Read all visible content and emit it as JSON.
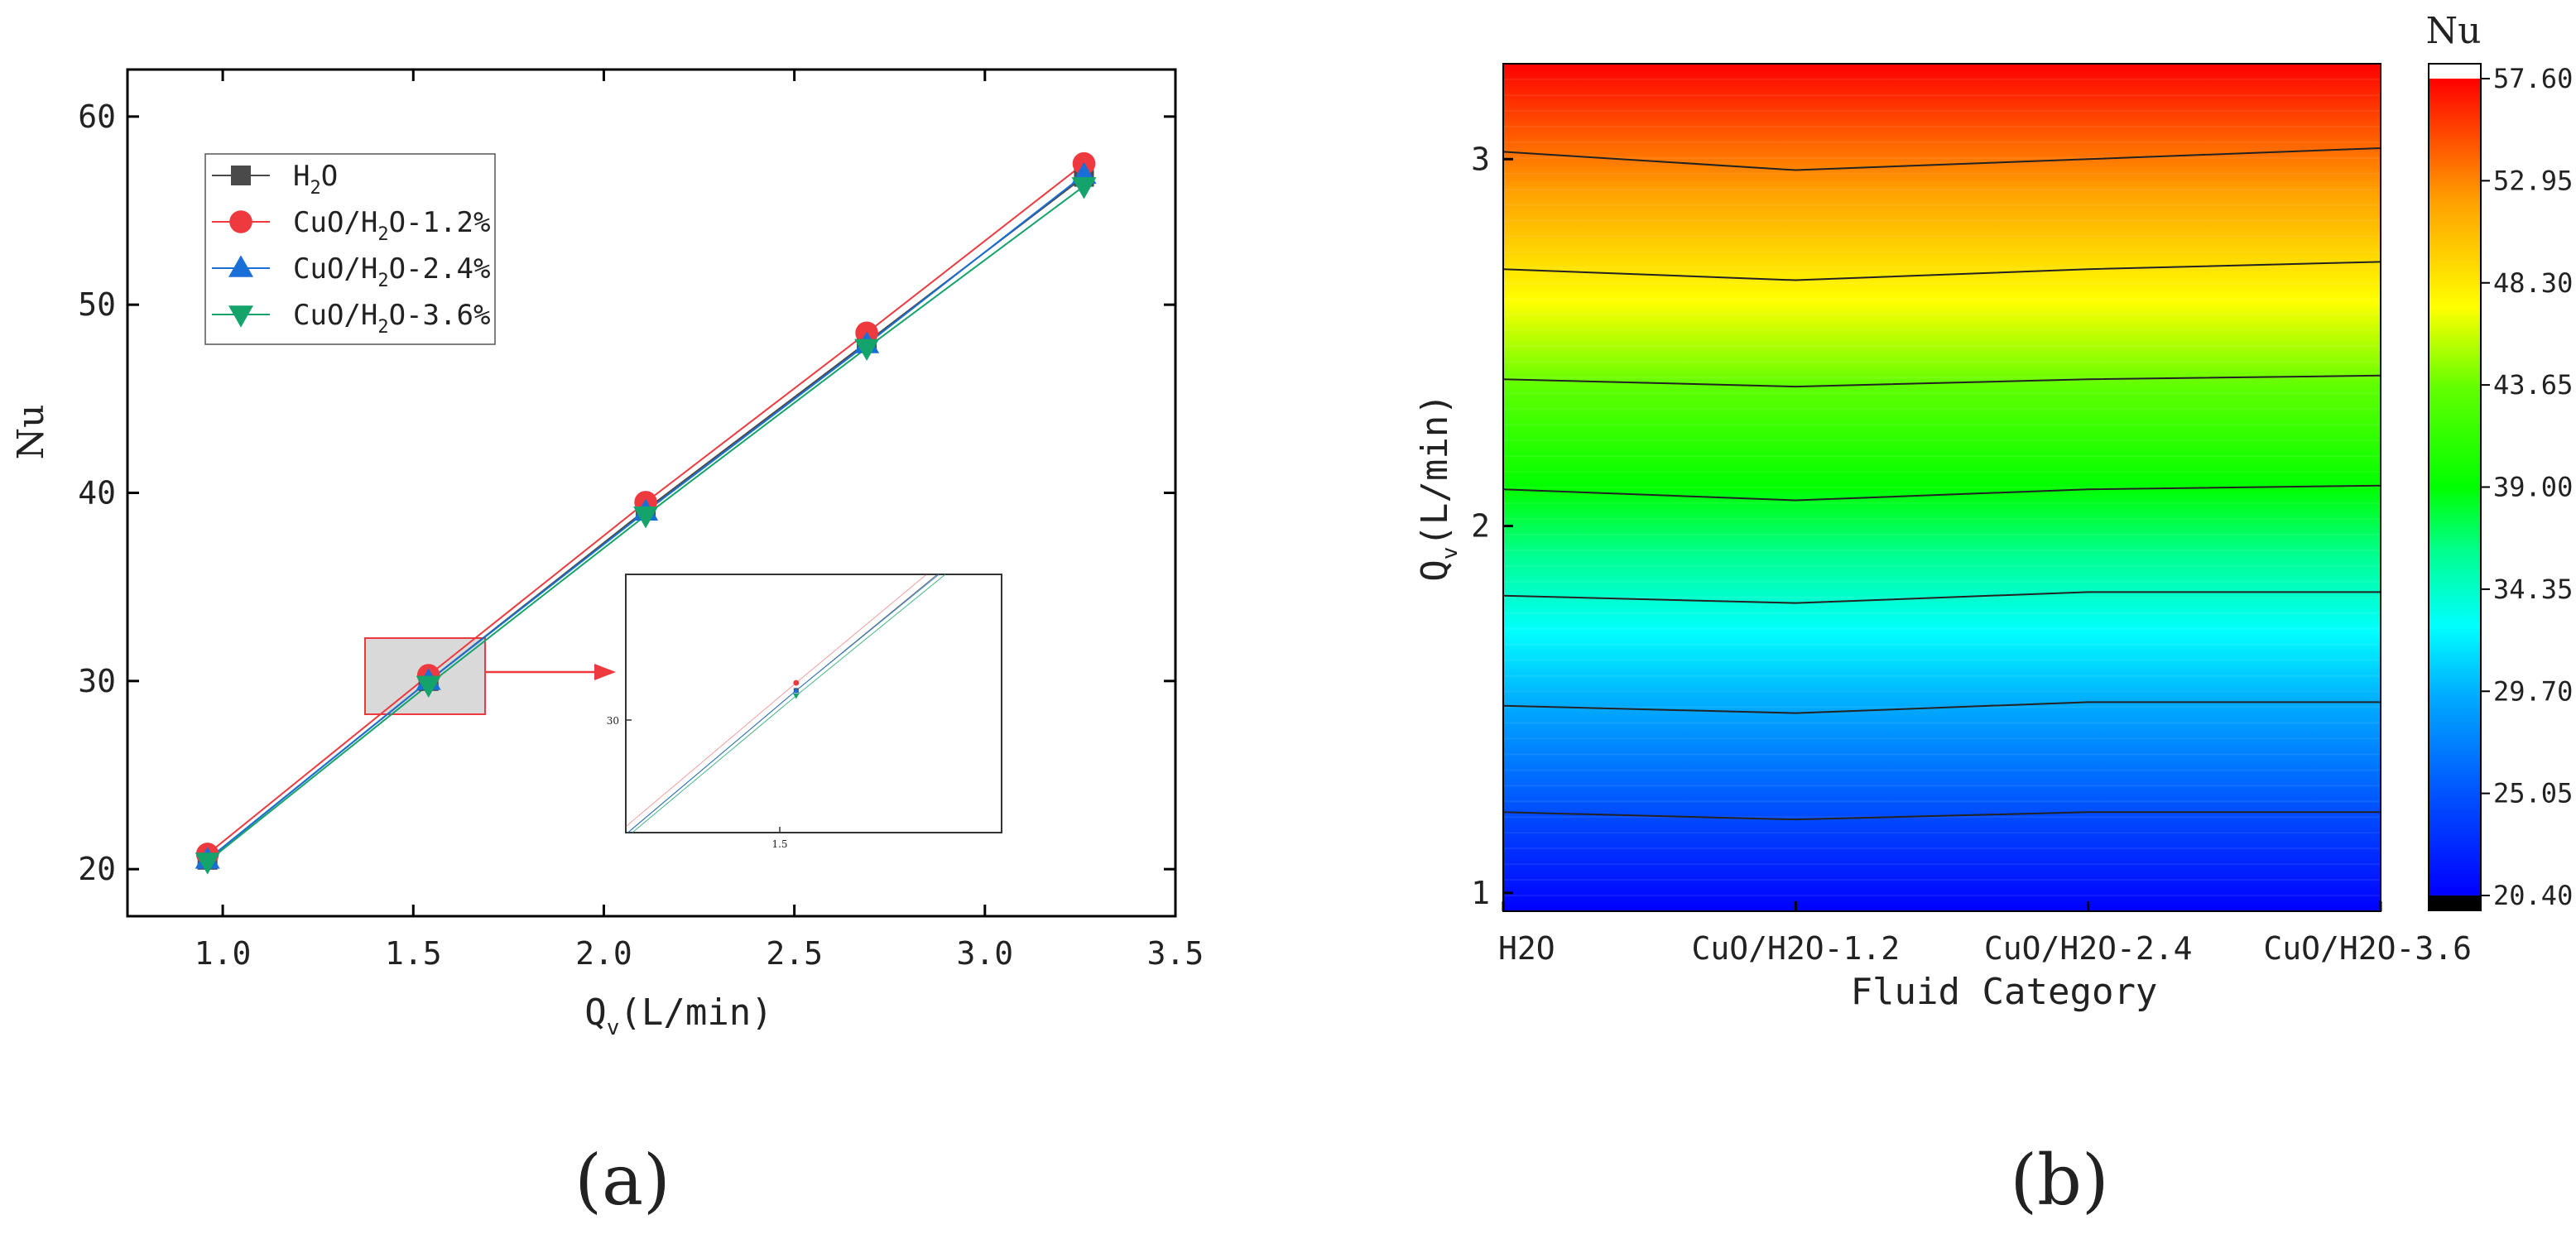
{
  "panels": {
    "a": {
      "label": "(a)"
    },
    "b": {
      "label": "(b)"
    }
  },
  "colors": {
    "H2O": "#4a4a4a",
    "CuO_1.2": "#ee3a3f",
    "CuO_2.4": "#1a6fd6",
    "CuO_3.6": "#14a36a",
    "zoom_box_fill": "#d9d9d9",
    "zoom_box_stroke": "#ee3a3f"
  },
  "chart_data": [
    {
      "type": "line",
      "panel": "(a)",
      "xlabel": "Q",
      "xlabel_sub": "v",
      "xlabel_units": "(L/min)",
      "ylabel": "Nu",
      "xlim": [
        0.75,
        3.5
      ],
      "ylim": [
        17.5,
        62.5
      ],
      "xticks": [
        "1.0",
        "1.5",
        "2.0",
        "2.5",
        "3.0",
        "3.5"
      ],
      "yticks": [
        "20",
        "30",
        "40",
        "50",
        "60"
      ],
      "legend_position": "top-left",
      "x": [
        0.96,
        1.54,
        2.11,
        2.69,
        3.26
      ],
      "series": [
        {
          "name": "H2O",
          "name_main": "H",
          "name_sub": "2",
          "name_tail": "O",
          "marker": "square",
          "values": [
            20.5,
            30.0,
            39.1,
            48.0,
            56.8
          ]
        },
        {
          "name": "CuO/H2O-1.2%",
          "name_main": "CuO/H",
          "name_sub": "2",
          "name_tail": "O-1.2%",
          "marker": "circle",
          "values": [
            20.8,
            30.3,
            39.5,
            48.5,
            57.5
          ]
        },
        {
          "name": "CuO/H2O-2.4%",
          "name_main": "CuO/H",
          "name_sub": "2",
          "name_tail": "O-2.4%",
          "marker": "triangle-up",
          "values": [
            20.5,
            30.0,
            39.0,
            47.9,
            56.9
          ]
        },
        {
          "name": "CuO/H2O-3.6%",
          "name_main": "CuO/H",
          "name_sub": "2",
          "name_tail": "O-3.6%",
          "marker": "triangle-down",
          "values": [
            20.4,
            29.8,
            38.8,
            47.7,
            56.3
          ]
        }
      ],
      "inset": {
        "xtick": "1.5",
        "ytick": "30"
      }
    },
    {
      "type": "heatmap",
      "panel": "(b)",
      "xlabel": "Fluid Category",
      "ylabel": "Q",
      "ylabel_sub": "v",
      "ylabel_units": "(L/min)",
      "categories": [
        "H2O",
        "CuO/H2O-1.2",
        "CuO/H2O-2.4",
        "CuO/H2O-3.6"
      ],
      "ylim": [
        0.95,
        3.26
      ],
      "yticks": [
        "1",
        "2",
        "3"
      ],
      "colorbar_title": "Nu",
      "colorbar_range": [
        20.4,
        57.6
      ],
      "colorbar_ticks": [
        "57.60",
        "52.95",
        "48.30",
        "43.65",
        "39.00",
        "34.35",
        "29.70",
        "25.05",
        "20.40"
      ],
      "contour_levels_nu": [
        25.05,
        29.7,
        34.35,
        39.0,
        43.65,
        48.3,
        52.95
      ],
      "contour_lines": [
        {
          "qv": [
            1.22,
            1.2,
            1.22,
            1.22
          ]
        },
        {
          "qv": [
            1.51,
            1.49,
            1.52,
            1.52
          ]
        },
        {
          "qv": [
            1.81,
            1.79,
            1.82,
            1.82
          ]
        },
        {
          "qv": [
            2.1,
            2.07,
            2.1,
            2.11
          ]
        },
        {
          "qv": [
            2.4,
            2.38,
            2.4,
            2.41
          ]
        },
        {
          "qv": [
            2.7,
            2.67,
            2.7,
            2.72
          ]
        },
        {
          "qv": [
            3.02,
            2.97,
            3.0,
            3.03
          ]
        }
      ]
    }
  ]
}
